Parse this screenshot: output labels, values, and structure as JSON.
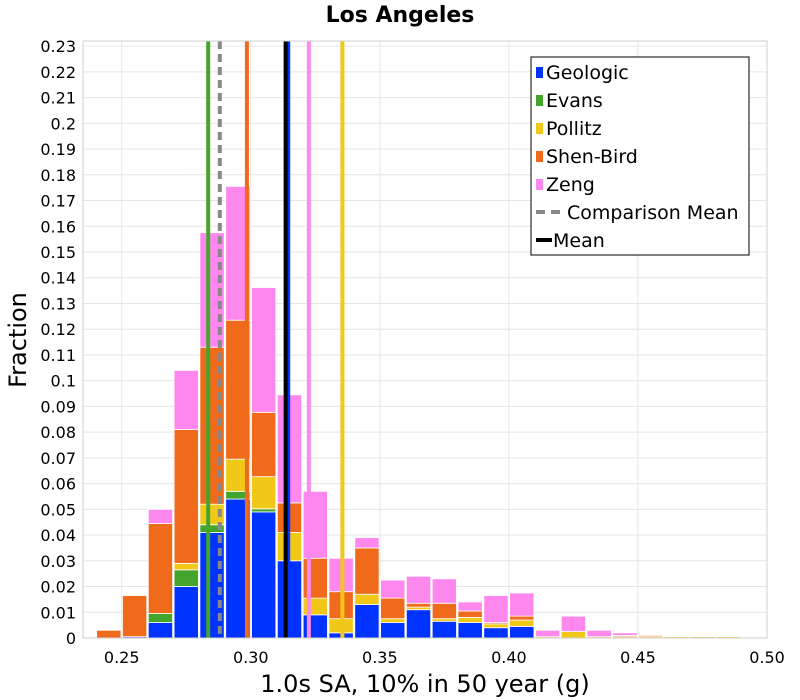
{
  "chart_data": {
    "type": "bar",
    "stacked": true,
    "title": "Los Angeles",
    "xlabel": "1.0s SA, 10% in 50 year (g)",
    "ylabel": "Fraction",
    "xlim": [
      0.235,
      0.5
    ],
    "ylim": [
      0,
      0.232
    ],
    "x_ticks": [
      "0.25",
      "0.30",
      "0.35",
      "0.40",
      "0.45",
      "0.50"
    ],
    "x_tick_values": [
      0.25,
      0.3,
      0.35,
      0.4,
      0.45,
      0.5
    ],
    "y_ticks": [
      "0",
      "0.01",
      "0.02",
      "0.03",
      "0.04",
      "0.05",
      "0.06",
      "0.07",
      "0.08",
      "0.09",
      "0.1",
      "0.11",
      "0.12",
      "0.13",
      "0.14",
      "0.15",
      "0.16",
      "0.17",
      "0.18",
      "0.19",
      "0.2",
      "0.21",
      "0.22",
      "0.23"
    ],
    "y_tick_values": [
      0,
      0.01,
      0.02,
      0.03,
      0.04,
      0.05,
      0.06,
      0.07,
      0.08,
      0.09,
      0.1,
      0.11,
      0.12,
      0.13,
      0.14,
      0.15,
      0.16,
      0.17,
      0.18,
      0.19,
      0.2,
      0.21,
      0.22,
      0.23
    ],
    "grid": true,
    "legend_position": "top-right",
    "bin_width": 0.01,
    "bin_starts": [
      0.24,
      0.25,
      0.26,
      0.27,
      0.28,
      0.29,
      0.3,
      0.31,
      0.32,
      0.33,
      0.34,
      0.35,
      0.36,
      0.37,
      0.38,
      0.39,
      0.4,
      0.41,
      0.42,
      0.43,
      0.44,
      0.45,
      0.46,
      0.47,
      0.48
    ],
    "series": [
      {
        "name": "Geologic",
        "color": "#0033ff",
        "values": [
          0,
          0.0005,
          0.006,
          0.02,
          0.041,
          0.054,
          0.049,
          0.03,
          0.009,
          0.002,
          0.013,
          0.006,
          0.011,
          0.0065,
          0.006,
          0.004,
          0.0045,
          0,
          0,
          0,
          0,
          0,
          0,
          0,
          0
        ]
      },
      {
        "name": "Evans",
        "color": "#44a52c",
        "values": [
          0,
          0,
          0.0035,
          0.0065,
          0.003,
          0.003,
          0.0012,
          0,
          0,
          0,
          0,
          0,
          0,
          0,
          0,
          0,
          0,
          0,
          0,
          0,
          0,
          0,
          0,
          0,
          0
        ]
      },
      {
        "name": "Pollitz",
        "color": "#f2c818",
        "values": [
          0,
          0,
          0,
          0.0025,
          0.008,
          0.0125,
          0.0125,
          0.011,
          0.0065,
          0.0055,
          0.004,
          0.0015,
          0.001,
          0.001,
          0.002,
          0.0015,
          0.0025,
          0.0005,
          0.0025,
          0.0005,
          0.0005,
          0.0005,
          0.0005,
          0.0005,
          0.0005
        ]
      },
      {
        "name": "Shen-Bird",
        "color": "#f06a1c",
        "values": [
          0.003,
          0.016,
          0.035,
          0.052,
          0.061,
          0.054,
          0.025,
          0.0115,
          0.0155,
          0.0105,
          0.018,
          0.008,
          0.0015,
          0.006,
          0.0025,
          0.0005,
          0.0015,
          0,
          0,
          0,
          0.0005,
          0.0005,
          0,
          0,
          0
        ]
      },
      {
        "name": "Zeng",
        "color": "#ff88ee",
        "values": [
          0,
          0,
          0.0055,
          0.023,
          0.0445,
          0.052,
          0.0485,
          0.042,
          0.026,
          0.013,
          0.004,
          0.007,
          0.0105,
          0.0095,
          0.0035,
          0.0105,
          0.009,
          0.0025,
          0.006,
          0.0025,
          0.001,
          0,
          0,
          0,
          0
        ]
      }
    ],
    "mean_lines": [
      {
        "name": "Geologic",
        "x": 0.3145,
        "color": "#0033ff",
        "style": "solid"
      },
      {
        "name": "Evans",
        "x": 0.2835,
        "color": "#44a52c",
        "style": "solid"
      },
      {
        "name": "Pollitz",
        "x": 0.3355,
        "color": "#f2c818",
        "style": "solid"
      },
      {
        "name": "Shen-Bird",
        "x": 0.2985,
        "color": "#f06a1c",
        "style": "solid"
      },
      {
        "name": "Zeng",
        "x": 0.3225,
        "color": "#ff88ee",
        "style": "solid"
      },
      {
        "name": "Comparison Mean",
        "x": 0.288,
        "color": "#888888",
        "style": "dashed"
      },
      {
        "name": "Mean",
        "x": 0.3135,
        "color": "#000000",
        "style": "solid"
      }
    ],
    "legend": [
      {
        "label": "Geologic",
        "color": "#0033ff",
        "kind": "box"
      },
      {
        "label": "Evans",
        "color": "#44a52c",
        "kind": "box"
      },
      {
        "label": "Pollitz",
        "color": "#f2c818",
        "kind": "box"
      },
      {
        "label": "Shen-Bird",
        "color": "#f06a1c",
        "kind": "box"
      },
      {
        "label": "Zeng",
        "color": "#ff88ee",
        "kind": "box"
      },
      {
        "label": "Comparison Mean",
        "color": "#888888",
        "kind": "dashed"
      },
      {
        "label": "Mean",
        "color": "#000000",
        "kind": "line"
      }
    ]
  }
}
